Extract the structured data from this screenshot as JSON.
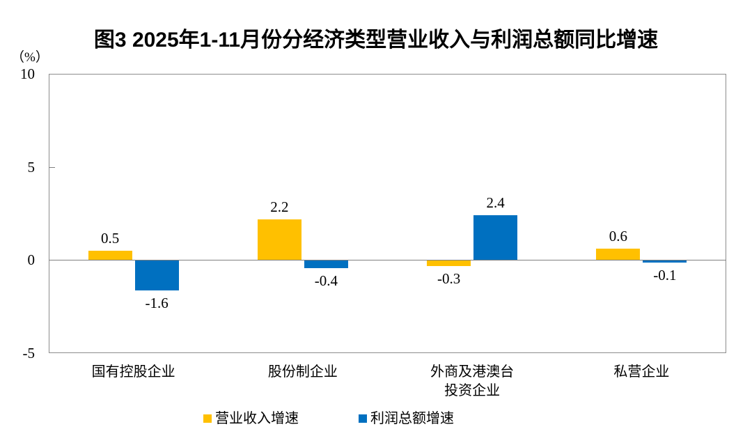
{
  "chart_data": {
    "type": "bar",
    "title": "图3 2025年1-11月份分经济类型营业收入与利润总额同比增速",
    "y_unit_label": "（%）",
    "categories": [
      "国有控股企业",
      "股份制企业",
      "外商及港澳台\n投资企业",
      "私营企业"
    ],
    "series": [
      {
        "key": "revenue",
        "name": "营业收入增速",
        "color": "#FFC000",
        "values": [
          0.5,
          2.2,
          -0.3,
          0.6
        ],
        "labels": [
          "0.5",
          "2.2",
          "-0.3",
          "0.6"
        ]
      },
      {
        "key": "profit",
        "name": "利润总额增速",
        "color": "#0070C0",
        "values": [
          -1.6,
          -0.4,
          2.4,
          -0.1
        ],
        "labels": [
          "-1.6",
          "-0.4",
          "2.4",
          "-0.1"
        ]
      }
    ],
    "ylim": [
      -5,
      10
    ],
    "yticks": [
      10,
      5,
      0,
      -5
    ],
    "legend_position": "bottom",
    "grid": "zero-line-only",
    "axis_color": "#8C8C8C",
    "zero_line_color": "#7F7F7F",
    "text_color": "#000000"
  }
}
